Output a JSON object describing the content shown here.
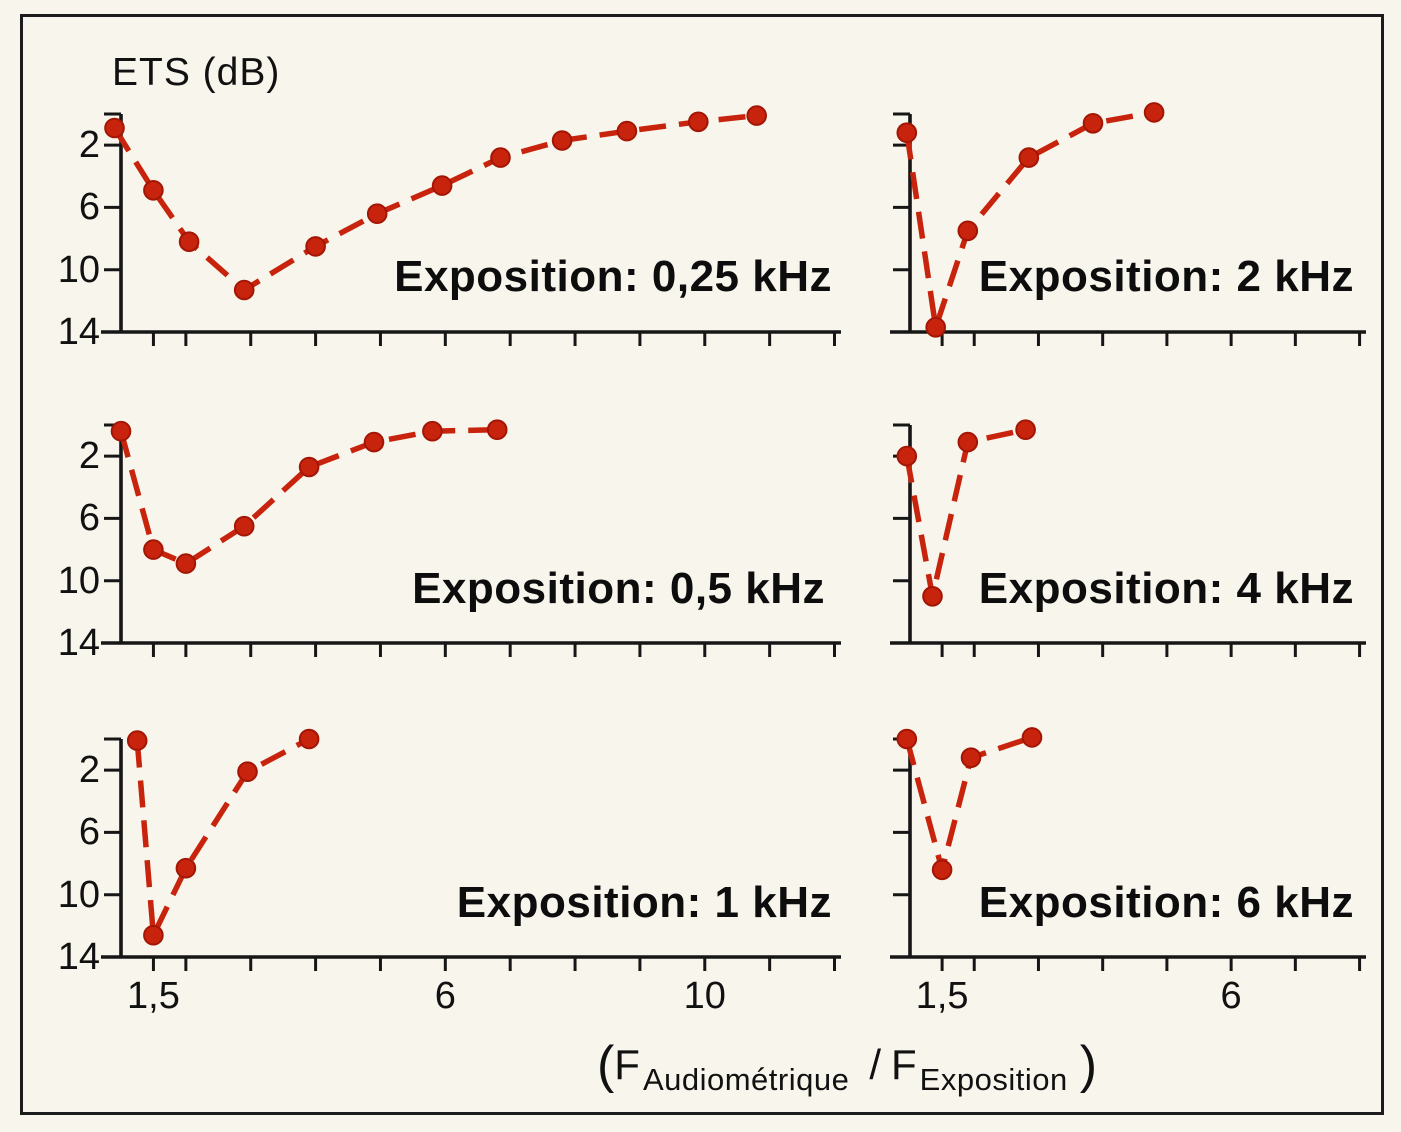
{
  "figure": {
    "y_axis_title": "ETS (dB)",
    "x_axis_title_parts": {
      "open": "(",
      "f1": "F",
      "sub1": "Audiométrique",
      "slash": "/",
      "f2": "F",
      "sub2": "Exposition",
      "close": ")"
    },
    "colors": {
      "accent_red": "#c8240d",
      "marker_core": "#a31605",
      "axis_black": "#161616",
      "background": "#f8f5ec",
      "text": "#111111"
    }
  },
  "chart_data": {
    "type": "line",
    "description": "Threshold shift ETS (dB) versus ratio of audiometric frequency to exposure frequency for six exposure frequencies; y axis inverted (0 dB at top, 14 dB at bottom); red dashed curves with filled circular markers.",
    "y_axis_label": "ETS (dB)",
    "x_axis_label": "(F Audiométrique / F Exposition)",
    "legend": "none",
    "grid": "off",
    "charts": [
      {
        "id": "exposition-0-25-khz",
        "title": "Exposition: 0,25 kHz",
        "row": 1,
        "column": "left",
        "x": [
          0.9,
          1.5,
          2.05,
          2.9,
          4.0,
          4.95,
          5.95,
          6.85,
          7.8,
          8.8,
          9.9,
          10.8
        ],
        "y": [
          0.9,
          4.9,
          8.2,
          11.3,
          8.5,
          6.4,
          4.6,
          2.8,
          1.7,
          1.1,
          0.5,
          0.1
        ],
        "xlim": [
          1,
          12.1
        ],
        "ylim": [
          0,
          14
        ],
        "x_ticks": [
          1.5,
          2,
          3,
          4,
          5,
          6,
          7,
          8,
          9,
          10,
          11,
          12
        ],
        "y_ticks": [
          0,
          2,
          6,
          10
        ],
        "x_tick_labels": [],
        "y_tick_labels": [
          {
            "value": 2,
            "label": "2"
          },
          {
            "value": 6,
            "label": "6"
          },
          {
            "value": 10,
            "label": "10"
          },
          {
            "value": 14,
            "label": "14"
          }
        ]
      },
      {
        "id": "exposition-2-khz",
        "title": "Exposition: 2 kHz",
        "row": 1,
        "column": "right",
        "x": [
          0.95,
          1.4,
          1.9,
          2.85,
          3.85,
          4.8
        ],
        "y": [
          1.2,
          13.7,
          7.5,
          2.8,
          0.6,
          -0.1
        ],
        "xlim": [
          1,
          8.1
        ],
        "ylim": [
          0,
          14
        ],
        "x_ticks": [
          1.5,
          2,
          3,
          4,
          5,
          6,
          7,
          8
        ],
        "y_ticks": [
          0,
          2,
          6,
          10
        ],
        "x_tick_labels": [],
        "y_tick_labels": []
      },
      {
        "id": "exposition-0-5-khz",
        "title": "Exposition: 0,5 kHz",
        "row": 2,
        "column": "left",
        "x": [
          1.0,
          1.5,
          2.0,
          2.9,
          3.9,
          4.9,
          5.8,
          6.8
        ],
        "y": [
          0.4,
          8.0,
          8.9,
          6.5,
          2.7,
          1.1,
          0.4,
          0.3
        ],
        "xlim": [
          1,
          12.1
        ],
        "ylim": [
          0,
          14
        ],
        "x_ticks": [
          1.5,
          2,
          3,
          4,
          5,
          6,
          7,
          8,
          9,
          10,
          11,
          12
        ],
        "y_ticks": [
          0,
          2,
          6,
          10
        ],
        "x_tick_labels": [],
        "y_tick_labels": [
          {
            "value": 2,
            "label": "2"
          },
          {
            "value": 6,
            "label": "6"
          },
          {
            "value": 10,
            "label": "10"
          },
          {
            "value": 14,
            "label": "14"
          }
        ]
      },
      {
        "id": "exposition-4-khz",
        "title": "Exposition: 4 kHz",
        "row": 2,
        "column": "right",
        "x": [
          0.95,
          1.35,
          1.9,
          2.8
        ],
        "y": [
          2.0,
          11.0,
          1.1,
          0.3
        ],
        "xlim": [
          1,
          8.1
        ],
        "ylim": [
          0,
          14
        ],
        "x_ticks": [
          1.5,
          2,
          3,
          4,
          5,
          6,
          7,
          8
        ],
        "y_ticks": [
          0,
          2,
          6,
          10
        ],
        "x_tick_labels": [],
        "y_tick_labels": []
      },
      {
        "id": "exposition-1-khz",
        "title": "Exposition: 1 kHz",
        "row": 3,
        "column": "left",
        "x": [
          1.25,
          1.5,
          2.0,
          2.95,
          3.9
        ],
        "y": [
          0.1,
          12.6,
          8.3,
          2.1,
          0.0
        ],
        "xlim": [
          1,
          12.1
        ],
        "ylim": [
          0,
          14
        ],
        "x_ticks": [
          1.5,
          2,
          3,
          4,
          5,
          6,
          7,
          8,
          9,
          10,
          11,
          12
        ],
        "y_ticks": [
          0,
          2,
          6,
          10
        ],
        "x_tick_labels": [
          {
            "value": 1.5,
            "label": "1,5"
          },
          {
            "value": 6,
            "label": "6"
          },
          {
            "value": 10,
            "label": "10"
          }
        ],
        "y_tick_labels": [
          {
            "value": 2,
            "label": "2"
          },
          {
            "value": 6,
            "label": "6"
          },
          {
            "value": 10,
            "label": "10"
          },
          {
            "value": 14,
            "label": "14"
          }
        ]
      },
      {
        "id": "exposition-6-khz",
        "title": "Exposition: 6 kHz",
        "row": 3,
        "column": "right",
        "x": [
          0.95,
          1.5,
          1.95,
          2.9
        ],
        "y": [
          0.0,
          8.4,
          1.2,
          -0.1
        ],
        "xlim": [
          1,
          8.1
        ],
        "ylim": [
          0,
          14
        ],
        "x_ticks": [
          1.5,
          2,
          3,
          4,
          5,
          6,
          7,
          8
        ],
        "y_ticks": [
          0,
          2,
          6,
          10
        ],
        "x_tick_labels": [
          {
            "value": 1.5,
            "label": "1,5"
          },
          {
            "value": 6,
            "label": "6"
          }
        ],
        "y_tick_labels": []
      }
    ]
  }
}
